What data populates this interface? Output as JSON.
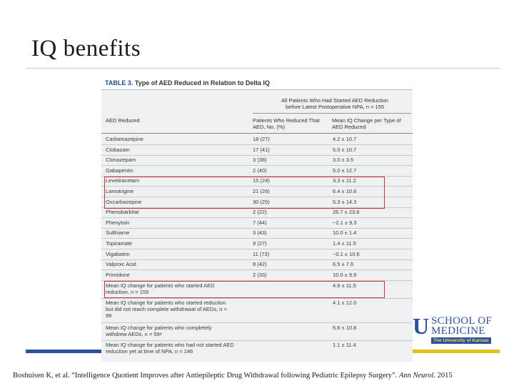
{
  "slide": {
    "title": "IQ benefits",
    "citation_main": "Boshuisen K, et al. “Intelligence Quotient Improves after Antiepileptic Drug Withdrawal following Pediatric Epilepsy Surgery”.",
    "citation_journal": "Ann Neurol.",
    "citation_year": "2015"
  },
  "table": {
    "caption_label": "TABLE 3.",
    "caption_text": "Type of AED Reduced in Relation to Delta IQ",
    "span_header_line1": "All Patients Who Had Started AED Reduction",
    "span_header_line2": "before Latest Postoperative NPA, n = 155",
    "col1_header": "AED Reduced",
    "col2_header": "Patients Who Reduced That AED, No. (%)",
    "col3_header": "Mean IQ Change per Type of AED Reduced",
    "rows": [
      {
        "aed": "Carbamazepine",
        "patients": "18 (27)",
        "iq": "4.2 ± 10.7"
      },
      {
        "aed": "Clobazam",
        "patients": "17 (41)",
        "iq": "5.0 ± 10.7"
      },
      {
        "aed": "Clonazepam",
        "patients": "3 (38)",
        "iq": "3.0 ± 3.5"
      },
      {
        "aed": "Gabapentin",
        "patients": "2 (40)",
        "iq": "5.0 ± 12.7"
      },
      {
        "aed": "Levetiracetam",
        "patients": "15 (24)",
        "iq": "3.3 ± 11.2"
      },
      {
        "aed": "Lamotrigine",
        "patients": "21 (26)",
        "iq": "6.4 ± 10.6"
      },
      {
        "aed": "Oxcarbazepine",
        "patients": "30 (25)",
        "iq": "5.3 ± 14.3"
      },
      {
        "aed": "Phenobarbital",
        "patients": "2 (22)",
        "iq": "26.7 ± 23.6"
      },
      {
        "aed": "Phenytoin",
        "patients": "7 (44)",
        "iq": "−2.1 ± 9.3"
      },
      {
        "aed": "Sulthiame",
        "patients": "3 (43)",
        "iq": "10.0 ± 1.4"
      },
      {
        "aed": "Topiramate",
        "patients": "9 (27)",
        "iq": "1.4 ± 11.5"
      },
      {
        "aed": "Vigabatrin",
        "patients": "11 (73)",
        "iq": "−0.1 ± 10.6"
      },
      {
        "aed": "Valproic Acid",
        "patients": "8 (42)",
        "iq": "6.5 ± 7.6"
      },
      {
        "aed": "Primidone",
        "patients": "2 (33)",
        "iq": "10.0 ± 9.9"
      }
    ],
    "summary_rows": [
      {
        "label": "Mean IQ change for patients who started AED reduction, n = 155",
        "iq": "4.6 ± 11.5"
      },
      {
        "label": "Mean IQ change for patients who started reduction but did not reach complete withdrawal of AEDs, n = 99",
        "iq": "4.1 ± 12.0"
      },
      {
        "label": "Mean IQ change for patients who completely withdrew AEDs, n = 59ᵃ",
        "iq": "5.6 ± 10.8"
      },
      {
        "label": "Mean IQ change for patients who had not started AED reduction yet at time of NPA, n = 146",
        "iq": "1.1 ± 11.4"
      }
    ]
  },
  "logo": {
    "mark": "U",
    "line1": "SCHOOL OF",
    "line2": "MEDICINE",
    "tagline": "The University of Kansas"
  },
  "colors": {
    "accent_blue": "#2c4f9e",
    "accent_gold": "#e3c220",
    "highlight_red": "#d03036"
  }
}
